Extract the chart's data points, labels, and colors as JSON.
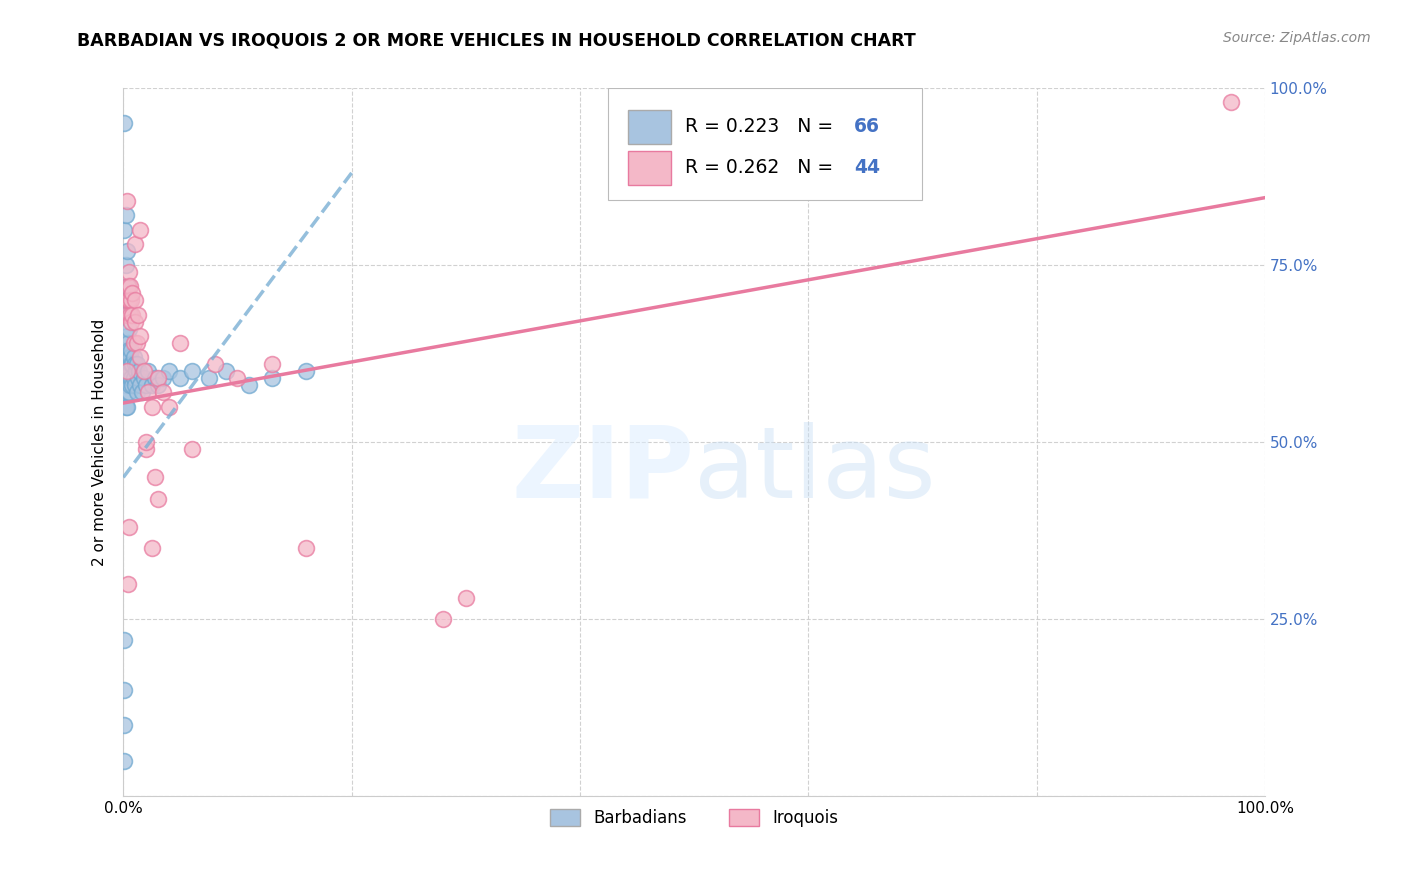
{
  "title": "BARBADIAN VS IROQUOIS 2 OR MORE VEHICLES IN HOUSEHOLD CORRELATION CHART",
  "source": "Source: ZipAtlas.com",
  "ylabel": "2 or more Vehicles in Household",
  "watermark": "ZIPatlas",
  "legend": {
    "barbadian_label": "Barbadians",
    "iroquois_label": "Iroquois",
    "barbadian_R": "0.223",
    "barbadian_N": "66",
    "iroquois_R": "0.262",
    "iroquois_N": "44"
  },
  "blue_color": "#a8c4e0",
  "blue_edge_color": "#6fa8d0",
  "blue_line_color": "#7bafd4",
  "pink_color": "#f4b8c8",
  "pink_edge_color": "#e87a9f",
  "pink_line_color": "#e87a9f",
  "blue_scatter_x": [
    0.001,
    0.001,
    0.001,
    0.001,
    0.002,
    0.002,
    0.002,
    0.002,
    0.003,
    0.003,
    0.003,
    0.003,
    0.003,
    0.004,
    0.004,
    0.004,
    0.004,
    0.005,
    0.005,
    0.005,
    0.005,
    0.006,
    0.006,
    0.006,
    0.007,
    0.007,
    0.007,
    0.008,
    0.008,
    0.009,
    0.009,
    0.01,
    0.01,
    0.011,
    0.012,
    0.012,
    0.013,
    0.014,
    0.015,
    0.016,
    0.018,
    0.02,
    0.022,
    0.025,
    0.028,
    0.03,
    0.035,
    0.04,
    0.05,
    0.06,
    0.075,
    0.09,
    0.11,
    0.13,
    0.16,
    0.001,
    0.001,
    0.002,
    0.002,
    0.003,
    0.003,
    0.004,
    0.004,
    0.005,
    0.005,
    0.006
  ],
  "blue_scatter_y": [
    0.05,
    0.1,
    0.15,
    0.22,
    0.55,
    0.58,
    0.6,
    0.62,
    0.55,
    0.58,
    0.6,
    0.62,
    0.65,
    0.57,
    0.6,
    0.62,
    0.64,
    0.57,
    0.59,
    0.61,
    0.63,
    0.58,
    0.6,
    0.62,
    0.59,
    0.61,
    0.63,
    0.58,
    0.61,
    0.59,
    0.62,
    0.58,
    0.61,
    0.6,
    0.57,
    0.61,
    0.59,
    0.6,
    0.58,
    0.57,
    0.59,
    0.58,
    0.6,
    0.58,
    0.59,
    0.58,
    0.59,
    0.6,
    0.59,
    0.6,
    0.59,
    0.6,
    0.58,
    0.59,
    0.6,
    0.8,
    0.95,
    0.75,
    0.82,
    0.7,
    0.77,
    0.68,
    0.72,
    0.66,
    0.7,
    0.68
  ],
  "pink_scatter_x": [
    0.003,
    0.003,
    0.004,
    0.004,
    0.005,
    0.005,
    0.006,
    0.006,
    0.007,
    0.007,
    0.008,
    0.008,
    0.009,
    0.01,
    0.01,
    0.012,
    0.013,
    0.015,
    0.015,
    0.018,
    0.02,
    0.022,
    0.025,
    0.028,
    0.03,
    0.035,
    0.04,
    0.05,
    0.06,
    0.08,
    0.1,
    0.13,
    0.16,
    0.28,
    0.3,
    0.003,
    0.004,
    0.005,
    0.01,
    0.015,
    0.02,
    0.025,
    0.03,
    0.97
  ],
  "pink_scatter_y": [
    0.6,
    0.68,
    0.7,
    0.72,
    0.7,
    0.74,
    0.68,
    0.72,
    0.67,
    0.7,
    0.71,
    0.68,
    0.64,
    0.67,
    0.7,
    0.64,
    0.68,
    0.62,
    0.65,
    0.6,
    0.49,
    0.57,
    0.55,
    0.45,
    0.59,
    0.57,
    0.55,
    0.64,
    0.49,
    0.61,
    0.59,
    0.61,
    0.35,
    0.25,
    0.28,
    0.84,
    0.3,
    0.38,
    0.78,
    0.8,
    0.5,
    0.35,
    0.42,
    0.98
  ],
  "blue_line_x0": 0.0,
  "blue_line_x1": 0.2,
  "blue_line_y0": 0.45,
  "blue_line_y1": 0.88,
  "pink_line_x0": 0.0,
  "pink_line_x1": 1.0,
  "pink_line_y0": 0.555,
  "pink_line_y1": 0.845,
  "xlim": [
    0.0,
    1.0
  ],
  "ylim": [
    0.0,
    1.0
  ],
  "xticks": [
    0.0,
    0.2,
    0.4,
    0.6,
    0.8,
    1.0
  ],
  "xtick_labels": [
    "0.0%",
    "",
    "",
    "",
    "",
    "100.0%"
  ],
  "ytick_positions": [
    0.0,
    0.25,
    0.5,
    0.75,
    1.0
  ],
  "ytick_labels_right": [
    "",
    "25.0%",
    "50.0%",
    "75.0%",
    "100.0%"
  ],
  "grid_color": "#cccccc",
  "background_color": "#ffffff",
  "right_tick_color": "#4472c4"
}
